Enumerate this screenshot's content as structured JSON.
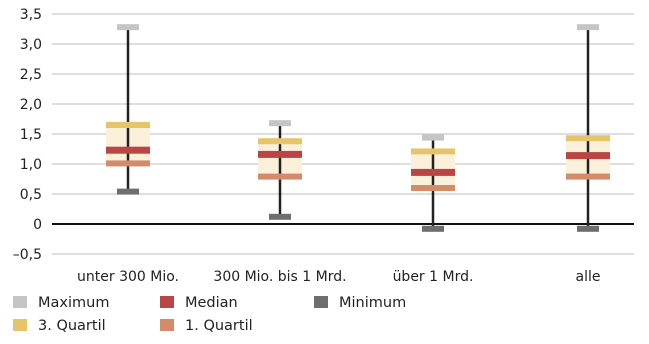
{
  "chart_data": {
    "type": "box",
    "categories": [
      "unter 300 Mio.",
      "300 Mio. bis 1 Mrd.",
      "über 1 Mrd.",
      "alle"
    ],
    "series": [
      {
        "name": "Maximum",
        "values": [
          3.28,
          1.68,
          1.44,
          3.28
        ]
      },
      {
        "name": "3. Quartil",
        "values": [
          1.65,
          1.38,
          1.21,
          1.43
        ]
      },
      {
        "name": "Median",
        "values": [
          1.23,
          1.16,
          0.86,
          1.14
        ]
      },
      {
        "name": "1. Quartil",
        "values": [
          1.01,
          0.79,
          0.6,
          0.79
        ]
      },
      {
        "name": "Minimum",
        "values": [
          0.54,
          0.12,
          -0.08,
          -0.08
        ]
      }
    ],
    "ylim": [
      -0.5,
      3.5
    ],
    "yticks": [
      "3,5",
      "3,0",
      "2,5",
      "2,0",
      "1,5",
      "1,0",
      "0,5",
      "0",
      "–0,5"
    ],
    "grid": true,
    "legend": [
      {
        "label": "Maximum",
        "color": "#c5c5c5"
      },
      {
        "label": "Median",
        "color": "#b94545"
      },
      {
        "label": "Minimum",
        "color": "#6e6e6e"
      },
      {
        "label": "3. Quartil",
        "color": "#e5c46c"
      },
      {
        "label": "1. Quartil",
        "color": "#d48b6a"
      }
    ],
    "legend_position": "bottom-left",
    "colors": {
      "box_fill": "#fbf0da",
      "whisker": "#222222",
      "grid": "#bdbdbd",
      "zero_line": "#111111"
    }
  }
}
